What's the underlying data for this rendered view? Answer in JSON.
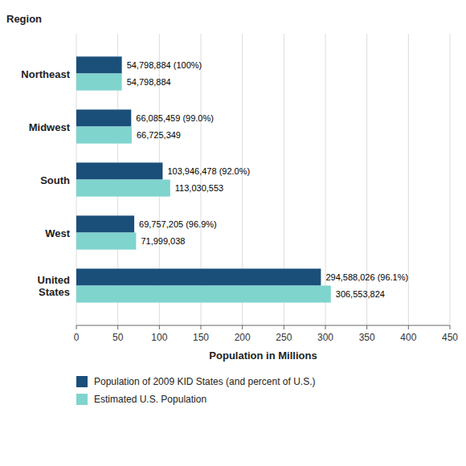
{
  "chart_data": {
    "type": "bar",
    "orientation": "horizontal",
    "categories": [
      "United\nStates",
      "West",
      "South",
      "Midwest",
      "Northeast"
    ],
    "series": [
      {
        "name": "Population of 2009 KID States (and percent of U.S.)",
        "color": "#1a4f7a",
        "values": [
          294588026,
          69757205,
          103946478,
          66085459,
          54798884
        ],
        "value_labels": [
          "294,588,026 (96.1%)",
          "69,757,205 (96.9%)",
          "103,946,478 (92.0%)",
          "66,085,459 (99.0%)",
          "54,798,884 (100%)"
        ]
      },
      {
        "name": "Estimated U.S. Population",
        "color": "#7fd4ce",
        "values": [
          306553824,
          71999038,
          113030553,
          66725349,
          54798884
        ],
        "value_labels": [
          "306,553,824",
          "71,999,038",
          "113,030,553",
          "66,725,349",
          "54,798,884"
        ]
      }
    ],
    "xlabel": "Population in Millions",
    "ylabel": "Region",
    "xlim": [
      0,
      450000000
    ],
    "xticks": [
      0,
      {
        "value": 50000000,
        "label": "50"
      },
      {
        "value": 100000000,
        "label": "100"
      },
      {
        "value": 150000000,
        "label": "150"
      },
      {
        "value": 200000000,
        "label": "200"
      },
      {
        "value": 250000000,
        "label": "250"
      },
      {
        "value": 300000000,
        "label": "300"
      },
      {
        "value": 350000000,
        "label": "350"
      },
      {
        "value": 400000000,
        "label": "400"
      },
      {
        "value": 450000000,
        "label": "450"
      }
    ],
    "grid": true,
    "data_labels": true,
    "legend": "bottom"
  }
}
